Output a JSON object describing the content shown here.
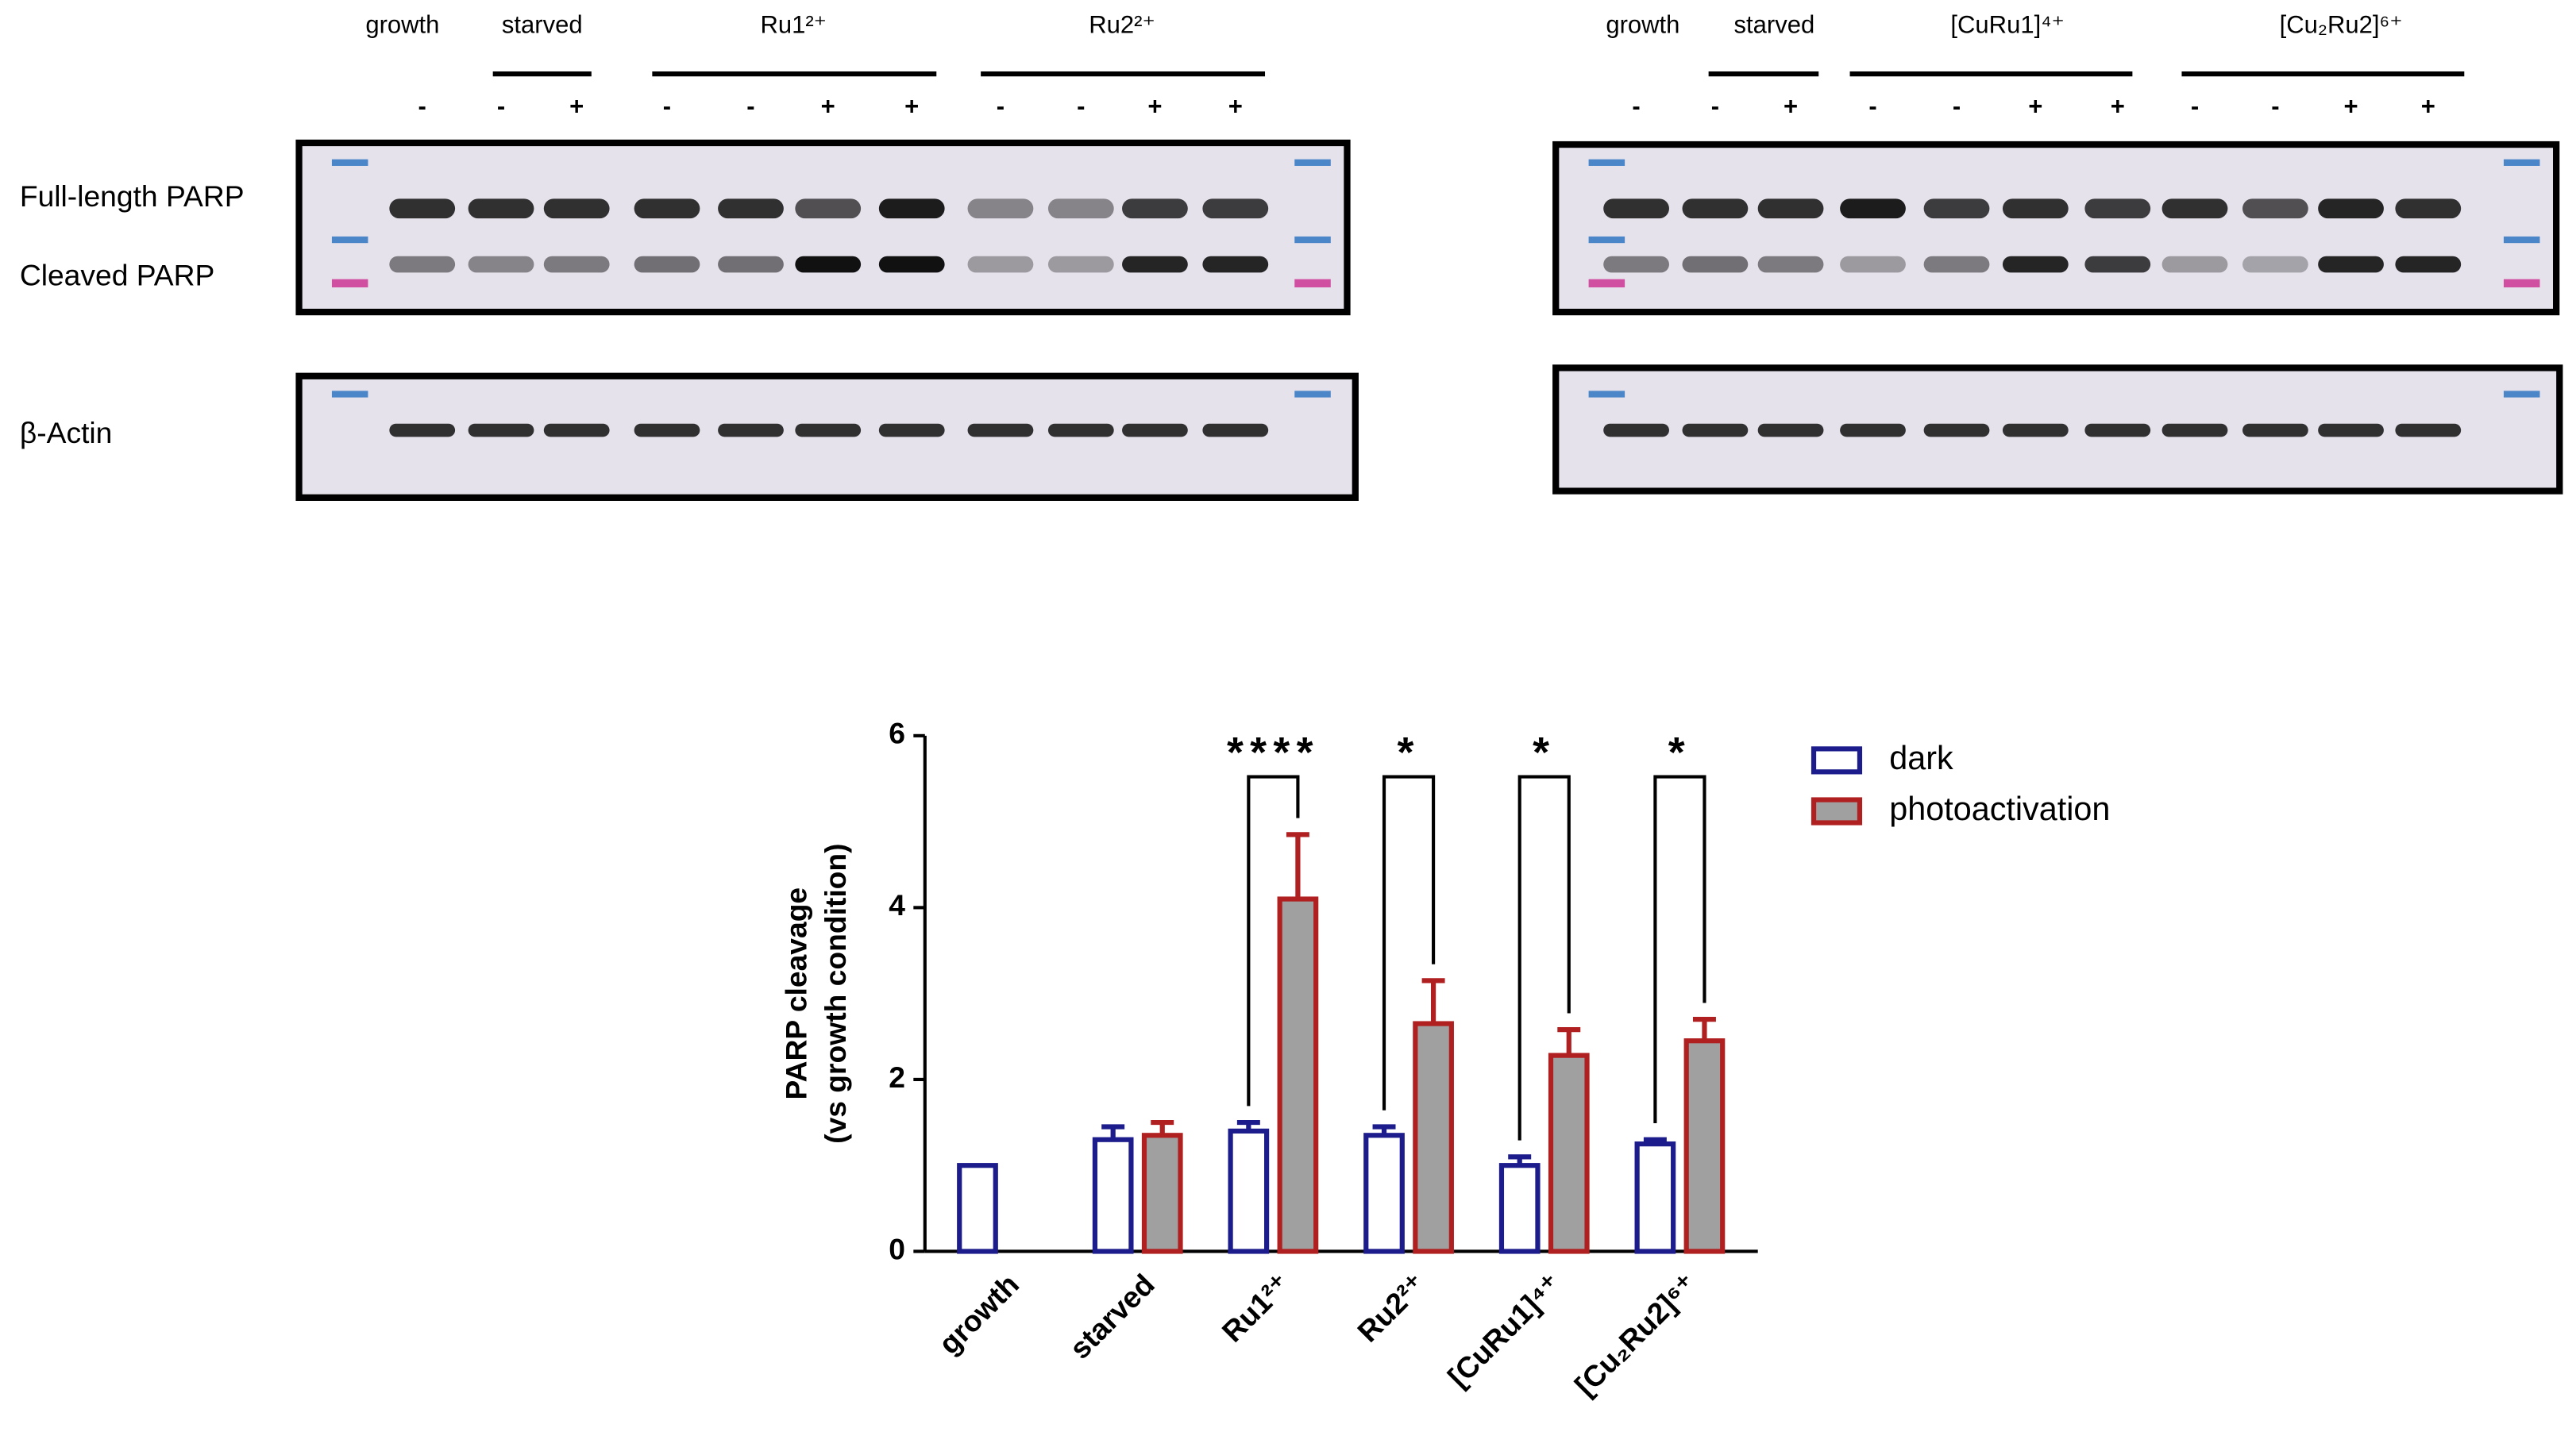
{
  "blots": {
    "left": {
      "groups": [
        "growth",
        "starved",
        "Ru1²⁺",
        "Ru2²⁺"
      ],
      "lanes": [
        "-",
        "-",
        "+",
        "-",
        "-",
        "+",
        "+",
        "-",
        "-",
        "+",
        "+"
      ]
    },
    "right": {
      "groups": [
        "growth",
        "starved",
        "[CuRu1]⁴⁺",
        "[Cu₂Ru2]⁶⁺"
      ],
      "lanes": [
        "-",
        "-",
        "+",
        "-",
        "-",
        "+",
        "+",
        "-",
        "-",
        "+",
        "+"
      ]
    },
    "rows": [
      "Full-length PARP",
      "Cleaved PARP",
      "β-Actin"
    ]
  },
  "chart_data": {
    "type": "bar",
    "ylabel": [
      "PARP cleavage",
      "(vs growth condition)"
    ],
    "categories": [
      "growth",
      "starved",
      "Ru1²⁺",
      "Ru2²⁺",
      "[CuRu1]⁴⁺",
      "[Cu₂Ru2]⁶⁺"
    ],
    "series": [
      {
        "name": "dark",
        "color": "#1c1c8c",
        "fill": "#ffffff",
        "values": [
          1.0,
          1.3,
          1.4,
          1.35,
          1.0,
          1.25
        ],
        "errors": [
          0,
          0.15,
          0.1,
          0.1,
          0.1,
          0.05
        ]
      },
      {
        "name": "photoactivation",
        "color": "#b02020",
        "fill": "#a0a0a0",
        "values": [
          null,
          1.35,
          4.1,
          2.65,
          2.28,
          2.45
        ],
        "errors": [
          null,
          0.15,
          0.75,
          0.5,
          0.3,
          0.25
        ]
      }
    ],
    "significance": [
      null,
      null,
      "****",
      "*",
      "*",
      "*"
    ],
    "ylim": [
      0,
      6
    ],
    "yticks": [
      0,
      2,
      4,
      6
    ]
  }
}
